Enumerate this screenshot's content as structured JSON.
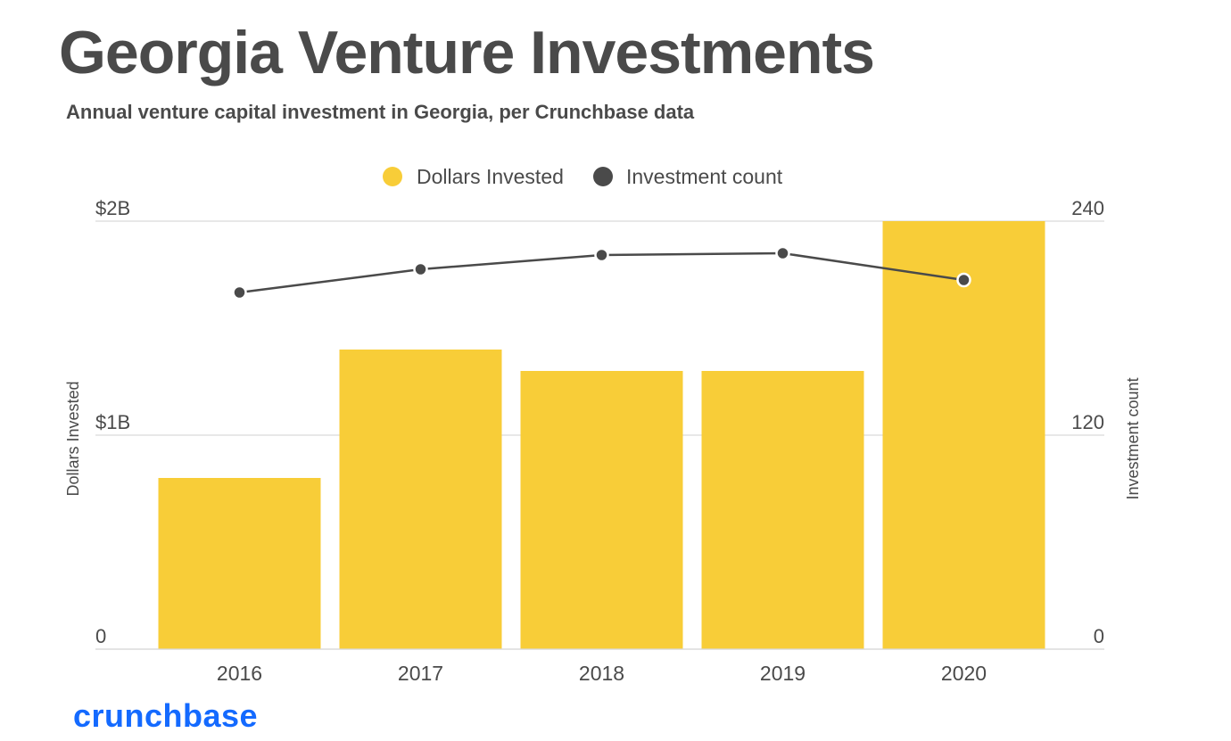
{
  "title": "Georgia Venture Investments",
  "subtitle": "Annual venture capital investment in Georgia, per Crunchbase data",
  "brand": "crunchbase",
  "colors": {
    "bar": "#f8cd38",
    "line": "#4a4a4a",
    "grid": "#d9d9d9",
    "text": "#4a4a4a",
    "brand": "#146aff"
  },
  "chart_data": {
    "type": "bar",
    "categories": [
      "2016",
      "2017",
      "2018",
      "2019",
      "2020"
    ],
    "series": [
      {
        "name": "Dollars Invested",
        "type": "bar",
        "axis": "left",
        "values": [
          0.8,
          1.4,
          1.3,
          1.3,
          2.0
        ],
        "unit": "$B"
      },
      {
        "name": "Investment count",
        "type": "line",
        "axis": "right",
        "values": [
          200,
          213,
          221,
          222,
          207
        ]
      }
    ],
    "y_left": {
      "label": "Dollars Invested",
      "range": [
        0,
        2
      ],
      "ticks": [
        {
          "value": 0,
          "label": "0"
        },
        {
          "value": 1,
          "label": "$1B"
        },
        {
          "value": 2,
          "label": "$2B"
        }
      ]
    },
    "y_right": {
      "label": "Investment count",
      "range": [
        0,
        240
      ],
      "ticks": [
        {
          "value": 0,
          "label": "0"
        },
        {
          "value": 120,
          "label": "120"
        },
        {
          "value": 240,
          "label": "240"
        }
      ]
    },
    "legend": {
      "position": "top-center",
      "items": [
        "Dollars Invested",
        "Investment count"
      ]
    },
    "grid": true
  }
}
